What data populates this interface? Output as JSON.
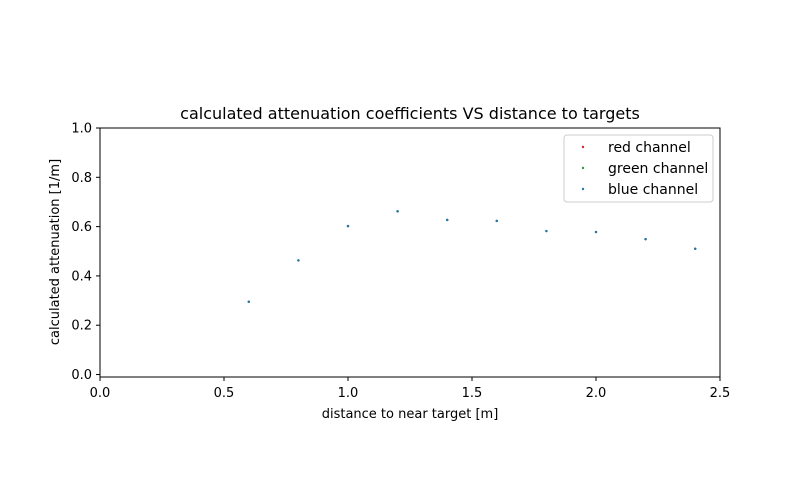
{
  "chart_data": {
    "type": "scatter",
    "title": "calculated attenuation coefficients VS distance to targets",
    "xlabel": "distance to near target [m]",
    "ylabel": "calculated attenuation [1/m]",
    "xlim": [
      0.0,
      2.5
    ],
    "ylim": [
      -0.01,
      1.0
    ],
    "xticks": [
      "0.0",
      "0.5",
      "1.0",
      "1.5",
      "2.0",
      "2.5"
    ],
    "yticks": [
      "0.0",
      "0.2",
      "0.4",
      "0.6",
      "0.8",
      "1.0"
    ],
    "grid": false,
    "legend_position": "top-right",
    "x": [
      0.6,
      0.8,
      1.0,
      1.2,
      1.4,
      1.6,
      1.8,
      2.0,
      2.2,
      2.4
    ],
    "series": [
      {
        "name": "red channel",
        "color": "#d62728",
        "values": [
          0.295,
          0.463,
          0.602,
          0.662,
          0.627,
          0.623,
          0.582,
          0.578,
          0.549,
          0.51
        ]
      },
      {
        "name": "green channel",
        "color": "#2ca02c",
        "values": [
          0.295,
          0.463,
          0.602,
          0.662,
          0.627,
          0.623,
          0.582,
          0.578,
          0.549,
          0.51
        ]
      },
      {
        "name": "blue channel",
        "color": "#1f77b4",
        "values": [
          0.295,
          0.463,
          0.602,
          0.662,
          0.627,
          0.623,
          0.582,
          0.578,
          0.549,
          0.51
        ]
      }
    ]
  }
}
